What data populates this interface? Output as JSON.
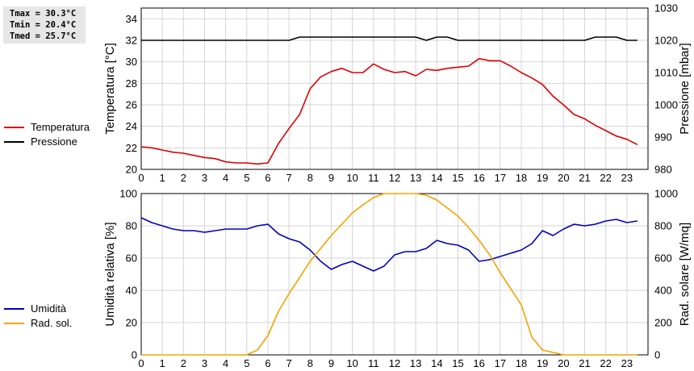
{
  "stats": {
    "tmax": "Tmax = 30.3°C",
    "tmin": "Tmin = 20.4°C",
    "tmed": "Tmed = 25.7°C"
  },
  "colors": {
    "temperature": "#dd0000",
    "pressure": "#000000",
    "humidity": "#0000bb",
    "radiation": "#f5a300",
    "grid": "#d4d4d4"
  },
  "chart_data": [
    {
      "type": "line",
      "x_ticks": [
        0,
        1,
        2,
        3,
        4,
        5,
        6,
        7,
        8,
        9,
        10,
        11,
        12,
        13,
        14,
        15,
        16,
        17,
        18,
        19,
        20,
        21,
        22,
        23
      ],
      "ylabel": "Temperatura [°C]",
      "ylabel_right": "Pressione [mbar]",
      "ylim": [
        20,
        35
      ],
      "y_ticks": [
        20,
        22,
        24,
        26,
        28,
        30,
        32,
        34
      ],
      "ylim_right": [
        980,
        1030
      ],
      "y_ticks_right": [
        980,
        990,
        1000,
        1010,
        1020,
        1030
      ],
      "grid": true,
      "legend_position": "left",
      "series": [
        {
          "name": "Temperatura",
          "axis": "left",
          "color": "#dd0000",
          "points": [
            [
              0,
              22.1
            ],
            [
              0.5,
              22.0
            ],
            [
              1,
              21.8
            ],
            [
              1.5,
              21.6
            ],
            [
              2,
              21.5
            ],
            [
              2.5,
              21.3
            ],
            [
              3,
              21.1
            ],
            [
              3.5,
              21.0
            ],
            [
              4,
              20.7
            ],
            [
              4.5,
              20.6
            ],
            [
              5,
              20.6
            ],
            [
              5.5,
              20.5
            ],
            [
              6,
              20.6
            ],
            [
              6.5,
              22.4
            ],
            [
              7,
              23.8
            ],
            [
              7.5,
              25.1
            ],
            [
              8,
              27.5
            ],
            [
              8.5,
              28.6
            ],
            [
              9,
              29.1
            ],
            [
              9.5,
              29.4
            ],
            [
              10,
              29.0
            ],
            [
              10.5,
              29.0
            ],
            [
              11,
              29.8
            ],
            [
              11.5,
              29.3
            ],
            [
              12,
              29.0
            ],
            [
              12.5,
              29.1
            ],
            [
              13,
              28.7
            ],
            [
              13.5,
              29.3
            ],
            [
              14,
              29.2
            ],
            [
              14.5,
              29.4
            ],
            [
              15,
              29.5
            ],
            [
              15.5,
              29.6
            ],
            [
              16,
              30.3
            ],
            [
              16.5,
              30.1
            ],
            [
              17,
              30.1
            ],
            [
              17.5,
              29.6
            ],
            [
              18,
              29.0
            ],
            [
              18.5,
              28.5
            ],
            [
              19,
              27.9
            ],
            [
              19.5,
              26.8
            ],
            [
              20,
              26.0
            ],
            [
              20.5,
              25.1
            ],
            [
              21,
              24.7
            ],
            [
              21.5,
              24.1
            ],
            [
              22,
              23.6
            ],
            [
              22.5,
              23.1
            ],
            [
              23,
              22.8
            ],
            [
              23.5,
              22.3
            ]
          ]
        },
        {
          "name": "Pressione",
          "axis": "right",
          "color": "#000000",
          "points": [
            [
              0,
              1020
            ],
            [
              7,
              1020
            ],
            [
              7.5,
              1021
            ],
            [
              13,
              1021
            ],
            [
              13.5,
              1020
            ],
            [
              14,
              1021
            ],
            [
              14.5,
              1021
            ],
            [
              15,
              1020
            ],
            [
              21,
              1020
            ],
            [
              21.5,
              1021
            ],
            [
              22.5,
              1021
            ],
            [
              23,
              1020
            ],
            [
              23.5,
              1020
            ]
          ]
        }
      ]
    },
    {
      "type": "line",
      "x_ticks": [
        0,
        1,
        2,
        3,
        4,
        5,
        6,
        7,
        8,
        9,
        10,
        11,
        12,
        13,
        14,
        15,
        16,
        17,
        18,
        19,
        20,
        21,
        22,
        23
      ],
      "ylabel": "Umidità relativa [%]",
      "ylabel_right": "Rad. solare [W/mq]",
      "ylim": [
        0,
        100
      ],
      "y_ticks": [
        0,
        20,
        40,
        60,
        80,
        100
      ],
      "ylim_right": [
        0,
        1000
      ],
      "y_ticks_right": [
        0,
        200,
        400,
        600,
        800,
        1000
      ],
      "grid": true,
      "legend_position": "left",
      "series": [
        {
          "name": "Umidità",
          "axis": "left",
          "color": "#0000bb",
          "points": [
            [
              0,
              85
            ],
            [
              0.5,
              82
            ],
            [
              1,
              80
            ],
            [
              1.5,
              78
            ],
            [
              2,
              77
            ],
            [
              2.5,
              77
            ],
            [
              3,
              76
            ],
            [
              3.5,
              77
            ],
            [
              4,
              78
            ],
            [
              4.5,
              78
            ],
            [
              5,
              78
            ],
            [
              5.5,
              80
            ],
            [
              6,
              81
            ],
            [
              6.5,
              75
            ],
            [
              7,
              72
            ],
            [
              7.5,
              70
            ],
            [
              8,
              65
            ],
            [
              8.5,
              58
            ],
            [
              9,
              53
            ],
            [
              9.5,
              56
            ],
            [
              10,
              58
            ],
            [
              10.5,
              55
            ],
            [
              11,
              52
            ],
            [
              11.5,
              55
            ],
            [
              12,
              62
            ],
            [
              12.5,
              64
            ],
            [
              13,
              64
            ],
            [
              13.5,
              66
            ],
            [
              14,
              71
            ],
            [
              14.5,
              69
            ],
            [
              15,
              68
            ],
            [
              15.5,
              65
            ],
            [
              16,
              58
            ],
            [
              16.5,
              59
            ],
            [
              17,
              61
            ],
            [
              17.5,
              63
            ],
            [
              18,
              65
            ],
            [
              18.5,
              69
            ],
            [
              19,
              77
            ],
            [
              19.5,
              74
            ],
            [
              20,
              78
            ],
            [
              20.5,
              81
            ],
            [
              21,
              80
            ],
            [
              21.5,
              81
            ],
            [
              22,
              83
            ],
            [
              22.5,
              84
            ],
            [
              23,
              82
            ],
            [
              23.5,
              83
            ]
          ]
        },
        {
          "name": "Rad. sol.",
          "axis": "right",
          "color": "#f5a300",
          "points": [
            [
              0,
              0
            ],
            [
              5,
              0
            ],
            [
              5.5,
              30
            ],
            [
              6,
              120
            ],
            [
              6.5,
              270
            ],
            [
              7,
              380
            ],
            [
              7.5,
              480
            ],
            [
              8,
              580
            ],
            [
              8.5,
              660
            ],
            [
              9,
              740
            ],
            [
              9.5,
              810
            ],
            [
              10,
              880
            ],
            [
              10.5,
              930
            ],
            [
              11,
              975
            ],
            [
              11.5,
              1000
            ],
            [
              12,
              1010
            ],
            [
              12.5,
              1010
            ],
            [
              13,
              1000
            ],
            [
              13.5,
              990
            ],
            [
              14,
              960
            ],
            [
              14.5,
              910
            ],
            [
              15,
              860
            ],
            [
              15.5,
              790
            ],
            [
              16,
              710
            ],
            [
              16.5,
              620
            ],
            [
              17,
              510
            ],
            [
              17.5,
              410
            ],
            [
              18,
              310
            ],
            [
              18.5,
              110
            ],
            [
              19,
              30
            ],
            [
              19.5,
              15
            ],
            [
              20,
              0
            ],
            [
              23.5,
              0
            ]
          ]
        }
      ]
    }
  ]
}
